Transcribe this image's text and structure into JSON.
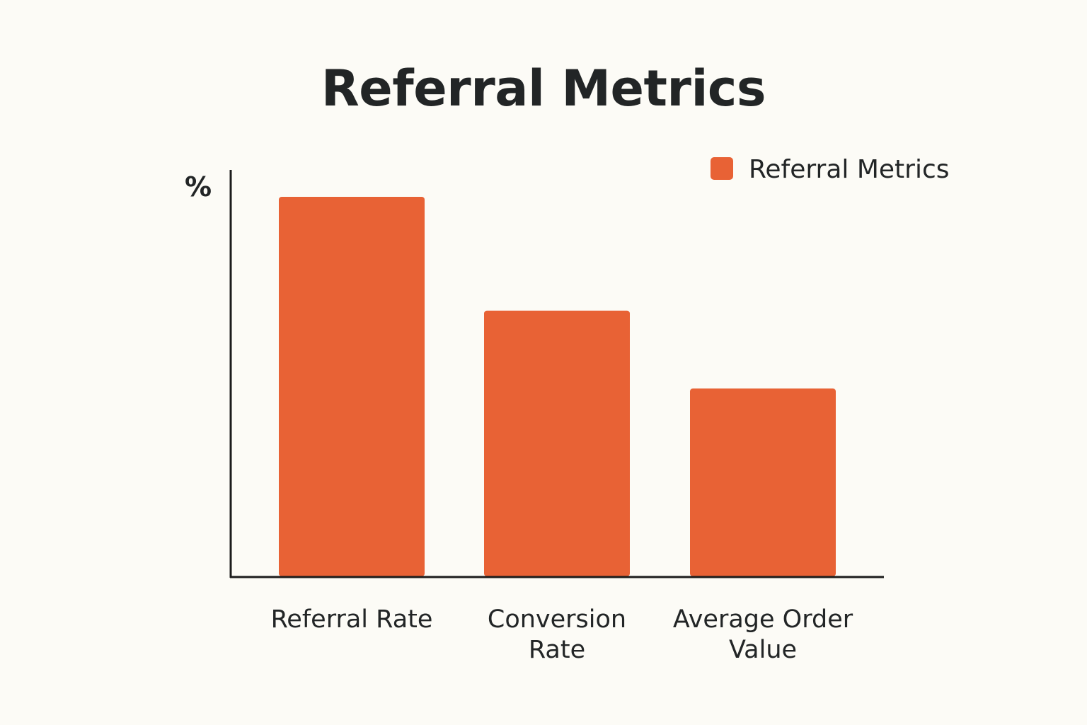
{
  "chart_data": {
    "type": "bar",
    "title": "Referral Metrics",
    "ylabel": "%",
    "xlabel": "",
    "categories": [
      "Referral Rate",
      "Conversion Rate",
      "Average Order Value"
    ],
    "category_lines": [
      [
        "Referral Rate"
      ],
      [
        "Conversion",
        "Rate"
      ],
      [
        "Average Order",
        "Value"
      ]
    ],
    "series": [
      {
        "name": "Referral Metrics",
        "values": [
          100,
          70,
          49.5
        ]
      }
    ],
    "ylim": [
      0,
      100
    ],
    "yticks": false,
    "grid": false,
    "legend": "top-right",
    "colors": {
      "bar": "#e86235",
      "axis": "#1c1c1c",
      "text": "#222526",
      "background": "#fcfbf6"
    }
  }
}
